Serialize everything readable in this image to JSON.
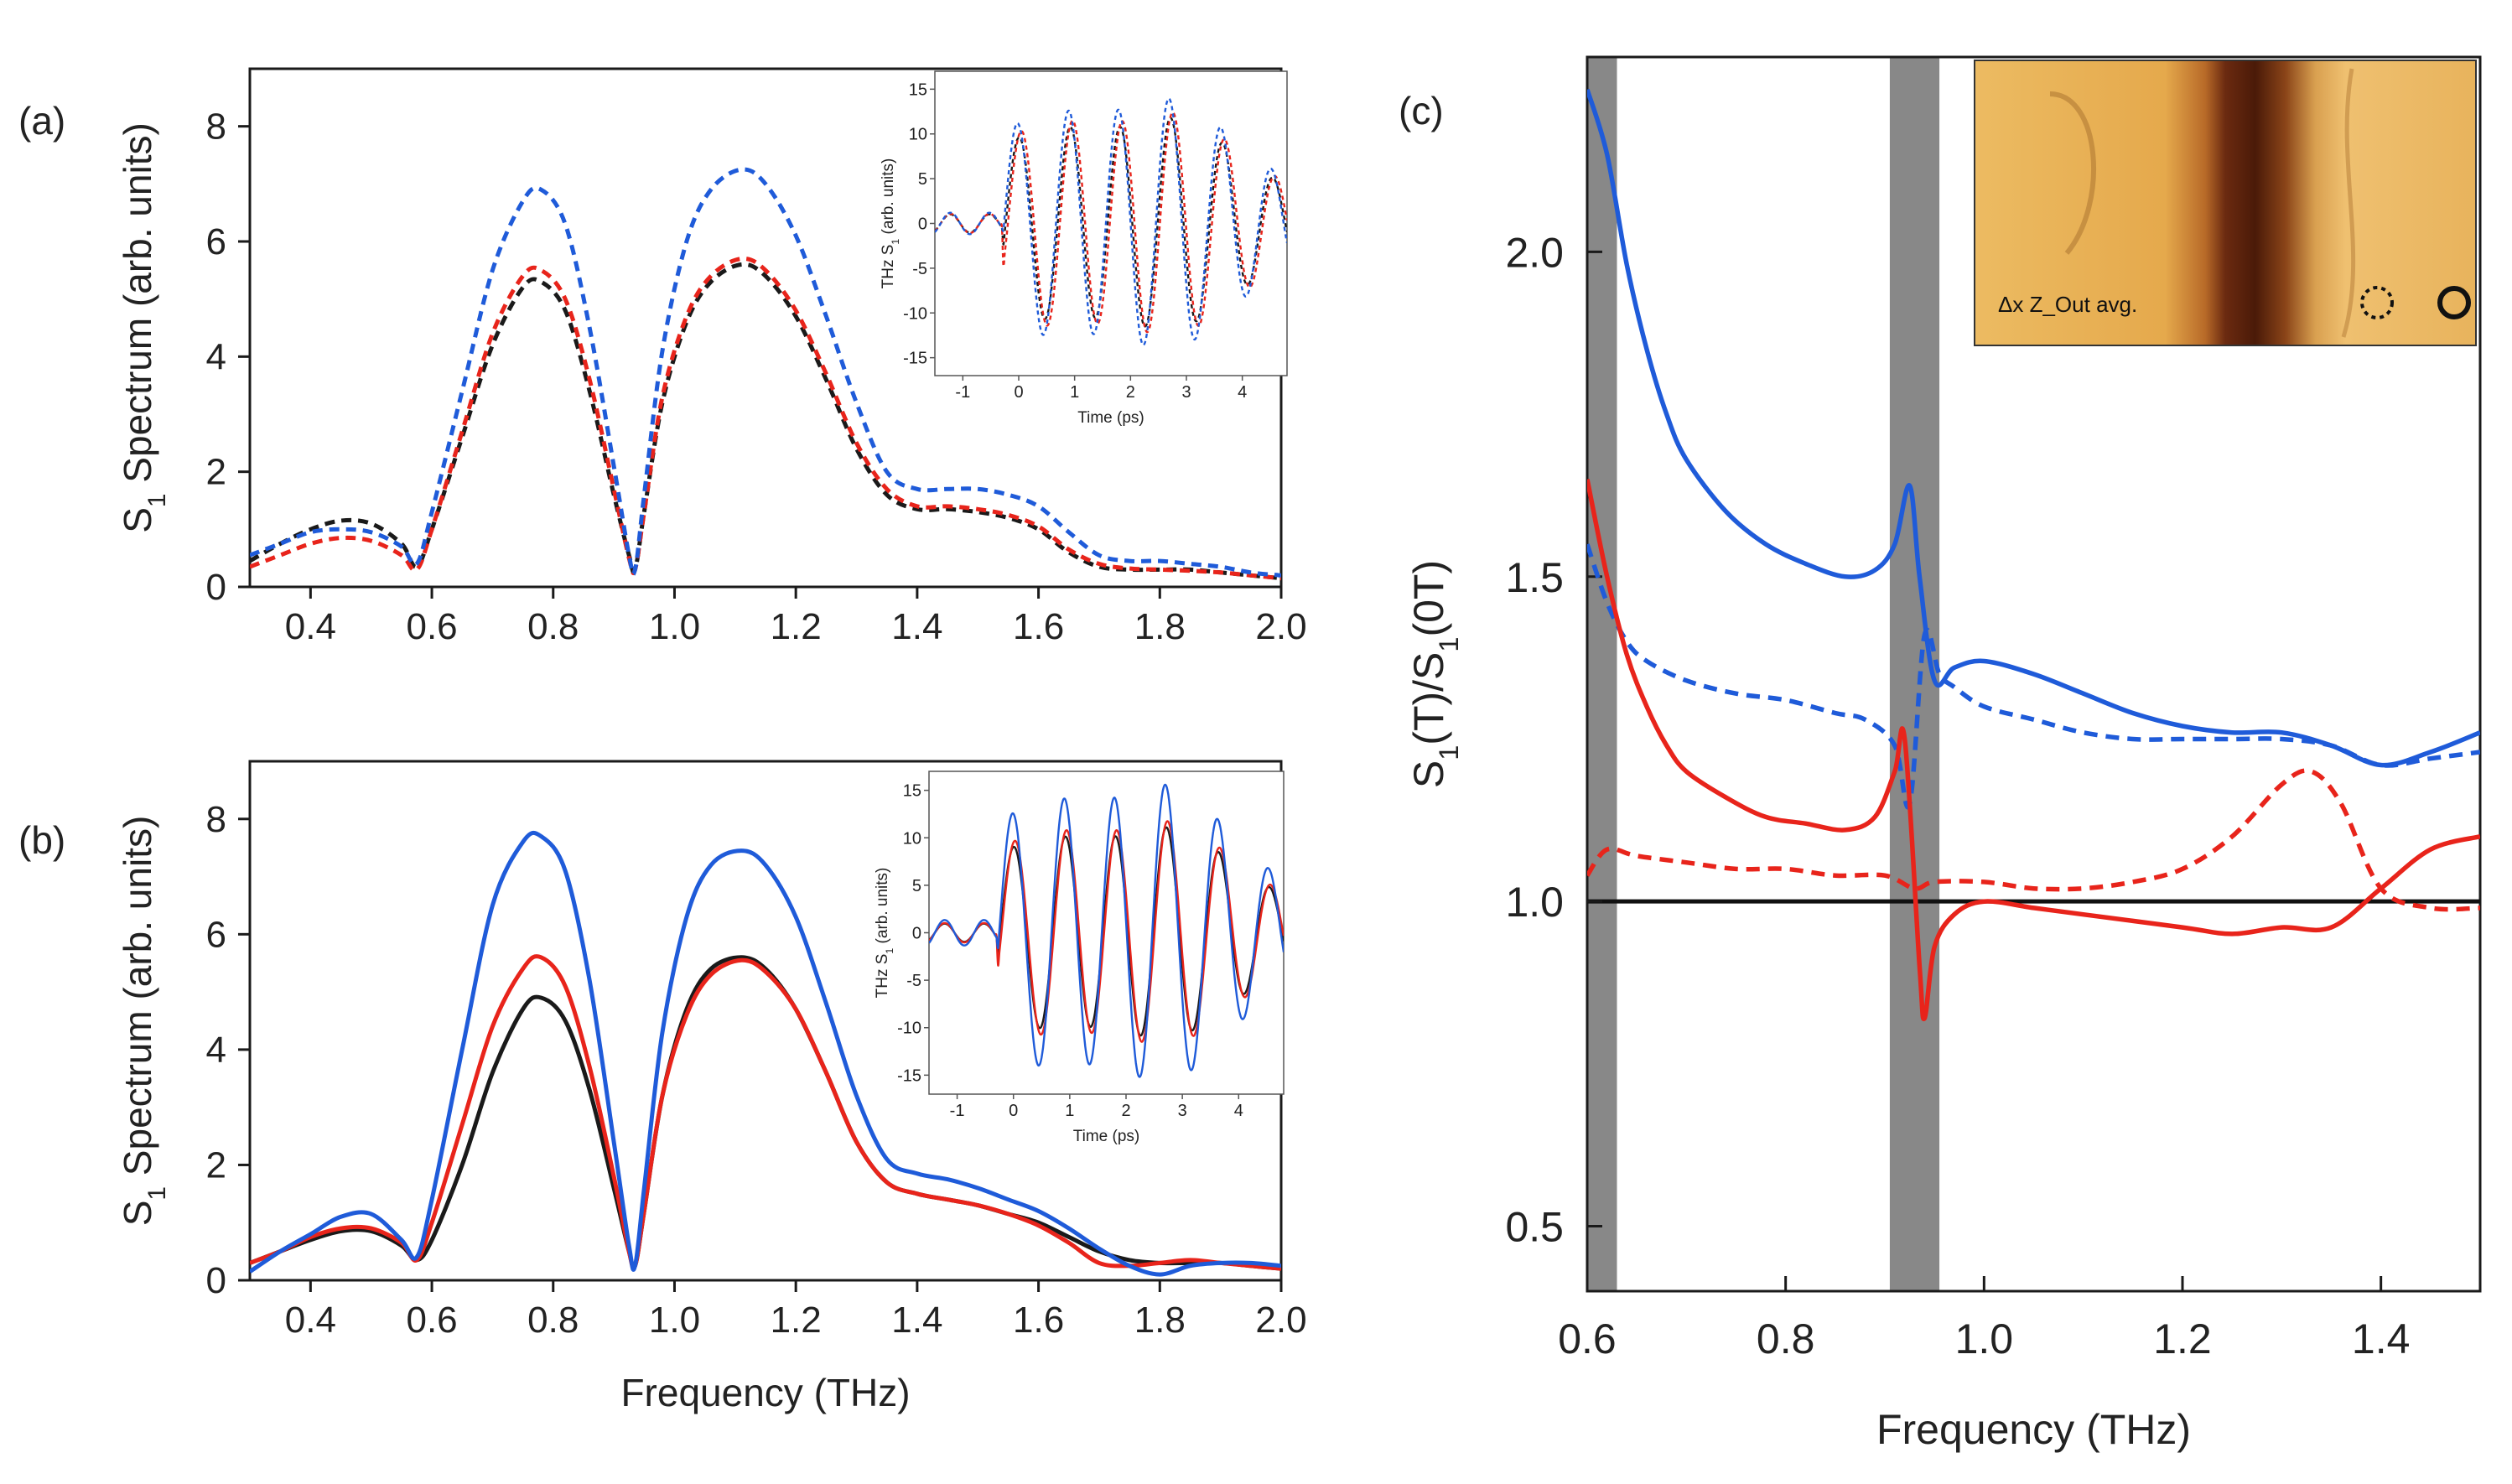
{
  "figure": {
    "panel_labels": [
      "(a)",
      "(b)",
      "(c)"
    ],
    "inset_annotation": "Δx Z_Out avg.",
    "colors": {
      "black": "#1a1a1a",
      "red": "#e8241b",
      "blue": "#1f5bd9",
      "band": "#888888",
      "inset_bg": "#e2ad52"
    }
  },
  "chart_data": [
    {
      "id": "a",
      "type": "line",
      "style": "dashed",
      "title": "",
      "xlabel": "",
      "ylabel": "S1 Spectrum (arb. units)",
      "xlim": [
        0.3,
        2.0
      ],
      "ylim": [
        0,
        9
      ],
      "xticks": [
        "0.4",
        "0.6",
        "0.8",
        "1.0",
        "1.2",
        "1.4",
        "1.6",
        "1.8",
        "2.0"
      ],
      "yticks": [
        "0",
        "2",
        "4",
        "6",
        "8"
      ],
      "x": [
        0.3,
        0.35,
        0.4,
        0.45,
        0.5,
        0.55,
        0.575,
        0.6,
        0.65,
        0.7,
        0.75,
        0.78,
        0.82,
        0.86,
        0.9,
        0.925,
        0.935,
        0.95,
        0.98,
        1.02,
        1.06,
        1.11,
        1.15,
        1.2,
        1.25,
        1.3,
        1.35,
        1.4,
        1.45,
        1.5,
        1.55,
        1.6,
        1.65,
        1.7,
        1.75,
        1.8,
        1.85,
        1.9,
        1.95,
        2.0
      ],
      "series": [
        {
          "name": "black",
          "color": "#1a1a1a",
          "values": [
            0.45,
            0.75,
            1.0,
            1.15,
            1.1,
            0.75,
            0.35,
            1.0,
            2.6,
            4.2,
            5.2,
            5.3,
            4.8,
            3.4,
            1.6,
            0.55,
            0.3,
            1.3,
            3.2,
            4.6,
            5.3,
            5.6,
            5.4,
            4.7,
            3.6,
            2.4,
            1.6,
            1.35,
            1.35,
            1.3,
            1.2,
            1.0,
            0.6,
            0.35,
            0.3,
            0.3,
            0.3,
            0.25,
            0.2,
            0.15
          ]
        },
        {
          "name": "red",
          "color": "#e8241b",
          "values": [
            0.35,
            0.55,
            0.75,
            0.85,
            0.8,
            0.55,
            0.3,
            1.0,
            2.7,
            4.4,
            5.4,
            5.5,
            5.0,
            3.6,
            1.7,
            0.5,
            0.3,
            1.3,
            3.3,
            4.7,
            5.4,
            5.7,
            5.5,
            4.8,
            3.7,
            2.5,
            1.7,
            1.4,
            1.4,
            1.35,
            1.25,
            1.05,
            0.65,
            0.4,
            0.32,
            0.3,
            0.28,
            0.25,
            0.2,
            0.15
          ]
        },
        {
          "name": "blue",
          "color": "#1f5bd9",
          "values": [
            0.55,
            0.75,
            0.95,
            1.0,
            0.95,
            0.7,
            0.4,
            1.3,
            3.4,
            5.5,
            6.7,
            6.9,
            6.3,
            4.5,
            2.1,
            0.55,
            0.3,
            1.6,
            4.1,
            6.0,
            6.9,
            7.25,
            7.0,
            6.1,
            4.7,
            3.2,
            2.0,
            1.7,
            1.7,
            1.7,
            1.6,
            1.4,
            0.95,
            0.55,
            0.45,
            0.45,
            0.4,
            0.35,
            0.25,
            0.2
          ]
        }
      ],
      "inset": {
        "xlabel": "Time (ps)",
        "ylabel": "THz S1 (arb. units)",
        "xlim": [
          -1.5,
          4.8
        ],
        "ylim": [
          -17,
          17
        ],
        "xticks": [
          "-1",
          "0",
          "1",
          "2",
          "3",
          "4"
        ],
        "yticks": [
          "-15",
          "-10",
          "-5",
          "0",
          "5",
          "10",
          "15"
        ]
      }
    },
    {
      "id": "b",
      "type": "line",
      "style": "solid",
      "title": "",
      "xlabel": "Frequency (THz)",
      "ylabel": "S1 Spectrum (arb. units)",
      "xlim": [
        0.3,
        2.0
      ],
      "ylim": [
        0,
        9
      ],
      "xticks": [
        "0.4",
        "0.6",
        "0.8",
        "1.0",
        "1.2",
        "1.4",
        "1.6",
        "1.8",
        "2.0"
      ],
      "yticks": [
        "0",
        "2",
        "4",
        "6",
        "8"
      ],
      "x": [
        0.3,
        0.35,
        0.4,
        0.45,
        0.5,
        0.55,
        0.575,
        0.6,
        0.65,
        0.7,
        0.75,
        0.78,
        0.82,
        0.86,
        0.9,
        0.925,
        0.935,
        0.95,
        0.98,
        1.02,
        1.06,
        1.11,
        1.15,
        1.2,
        1.25,
        1.3,
        1.35,
        1.4,
        1.45,
        1.5,
        1.55,
        1.6,
        1.65,
        1.7,
        1.75,
        1.8,
        1.85,
        1.9,
        1.95,
        2.0
      ],
      "series": [
        {
          "name": "black",
          "color": "#1a1a1a",
          "values": [
            0.3,
            0.5,
            0.7,
            0.85,
            0.85,
            0.6,
            0.35,
            0.7,
            2.0,
            3.6,
            4.7,
            4.9,
            4.5,
            3.3,
            1.6,
            0.5,
            0.25,
            1.2,
            3.2,
            4.7,
            5.4,
            5.6,
            5.4,
            4.7,
            3.6,
            2.4,
            1.7,
            1.5,
            1.4,
            1.3,
            1.15,
            1.0,
            0.75,
            0.5,
            0.35,
            0.3,
            0.3,
            0.3,
            0.25,
            0.2
          ]
        },
        {
          "name": "red",
          "color": "#e8241b",
          "values": [
            0.3,
            0.5,
            0.75,
            0.9,
            0.9,
            0.65,
            0.35,
            1.0,
            2.7,
            4.4,
            5.4,
            5.6,
            5.1,
            3.7,
            1.8,
            0.5,
            0.25,
            1.2,
            3.2,
            4.6,
            5.3,
            5.55,
            5.35,
            4.7,
            3.6,
            2.4,
            1.7,
            1.5,
            1.4,
            1.3,
            1.15,
            0.95,
            0.65,
            0.3,
            0.25,
            0.3,
            0.35,
            0.3,
            0.25,
            0.2
          ]
        },
        {
          "name": "blue",
          "color": "#1f5bd9",
          "values": [
            0.15,
            0.5,
            0.8,
            1.1,
            1.15,
            0.7,
            0.4,
            1.4,
            4.0,
            6.5,
            7.6,
            7.7,
            7.1,
            5.2,
            2.4,
            0.6,
            0.25,
            1.6,
            4.3,
            6.3,
            7.2,
            7.45,
            7.2,
            6.3,
            4.8,
            3.2,
            2.1,
            1.85,
            1.75,
            1.6,
            1.4,
            1.2,
            0.9,
            0.55,
            0.25,
            0.1,
            0.25,
            0.3,
            0.3,
            0.25
          ]
        }
      ],
      "inset": {
        "xlabel": "Time (ps)",
        "ylabel": "THz S1 (arb. units)",
        "xlim": [
          -1.5,
          4.8
        ],
        "ylim": [
          -17,
          17
        ],
        "xticks": [
          "-1",
          "0",
          "1",
          "2",
          "3",
          "4"
        ],
        "yticks": [
          "-15",
          "-10",
          "-5",
          "0",
          "5",
          "10",
          "15"
        ]
      }
    },
    {
      "id": "c",
      "type": "line",
      "title": "",
      "xlabel": "Frequency (THz)",
      "ylabel": "S1(T)/S1(0T)",
      "xlim": [
        0.6,
        1.5
      ],
      "ylim": [
        0.4,
        2.3
      ],
      "xticks": [
        "0.6",
        "0.8",
        "1.0",
        "1.2",
        "1.4"
      ],
      "yticks": [
        "0.5",
        "1.0",
        "1.5",
        "2.0"
      ],
      "reference_line": 1.0,
      "shaded_bands": [
        [
          0.6,
          0.63
        ],
        [
          0.905,
          0.955
        ]
      ],
      "series": [
        {
          "name": "blue-solid",
          "color": "#1f5bd9",
          "dash": false,
          "x": [
            0.6,
            0.62,
            0.64,
            0.66,
            0.68,
            0.7,
            0.74,
            0.78,
            0.82,
            0.86,
            0.89,
            0.91,
            0.925,
            0.935,
            0.95,
            0.97,
            1.0,
            1.05,
            1.1,
            1.15,
            1.2,
            1.25,
            1.3,
            1.35,
            1.4,
            1.45,
            1.5
          ],
          "values": [
            2.25,
            2.15,
            1.98,
            1.85,
            1.75,
            1.68,
            1.6,
            1.55,
            1.52,
            1.5,
            1.51,
            1.55,
            1.64,
            1.5,
            1.34,
            1.36,
            1.37,
            1.35,
            1.32,
            1.29,
            1.27,
            1.26,
            1.26,
            1.24,
            1.21,
            1.23,
            1.26
          ]
        },
        {
          "name": "blue-dashed",
          "color": "#1f5bd9",
          "dash": true,
          "x": [
            0.6,
            0.62,
            0.64,
            0.66,
            0.7,
            0.75,
            0.8,
            0.85,
            0.88,
            0.91,
            0.925,
            0.94,
            0.955,
            0.97,
            1.0,
            1.05,
            1.1,
            1.15,
            1.2,
            1.25,
            1.3,
            1.35,
            1.4,
            1.45,
            1.5
          ],
          "values": [
            1.55,
            1.46,
            1.4,
            1.37,
            1.34,
            1.32,
            1.31,
            1.29,
            1.28,
            1.24,
            1.15,
            1.41,
            1.35,
            1.33,
            1.3,
            1.28,
            1.26,
            1.25,
            1.25,
            1.25,
            1.25,
            1.24,
            1.21,
            1.22,
            1.23
          ]
        },
        {
          "name": "red-solid",
          "color": "#e8241b",
          "dash": false,
          "x": [
            0.6,
            0.62,
            0.64,
            0.66,
            0.68,
            0.7,
            0.74,
            0.78,
            0.82,
            0.86,
            0.89,
            0.91,
            0.92,
            0.935,
            0.94,
            0.95,
            0.97,
            1.0,
            1.05,
            1.1,
            1.2,
            1.25,
            1.3,
            1.35,
            1.4,
            1.45,
            1.5
          ],
          "values": [
            1.65,
            1.5,
            1.38,
            1.3,
            1.24,
            1.2,
            1.16,
            1.13,
            1.12,
            1.11,
            1.13,
            1.2,
            1.25,
            0.9,
            0.82,
            0.93,
            0.98,
            1.0,
            0.99,
            0.98,
            0.96,
            0.95,
            0.96,
            0.96,
            1.02,
            1.08,
            1.1
          ]
        },
        {
          "name": "red-dashed",
          "color": "#e8241b",
          "dash": true,
          "x": [
            0.6,
            0.62,
            0.65,
            0.7,
            0.75,
            0.8,
            0.85,
            0.9,
            0.93,
            0.95,
            1.0,
            1.05,
            1.1,
            1.15,
            1.2,
            1.25,
            1.3,
            1.33,
            1.36,
            1.4,
            1.45,
            1.5
          ],
          "values": [
            1.04,
            1.08,
            1.07,
            1.06,
            1.05,
            1.05,
            1.04,
            1.04,
            1.02,
            1.03,
            1.03,
            1.02,
            1.02,
            1.03,
            1.05,
            1.1,
            1.18,
            1.2,
            1.15,
            1.02,
            0.99,
            0.99
          ]
        }
      ]
    }
  ]
}
